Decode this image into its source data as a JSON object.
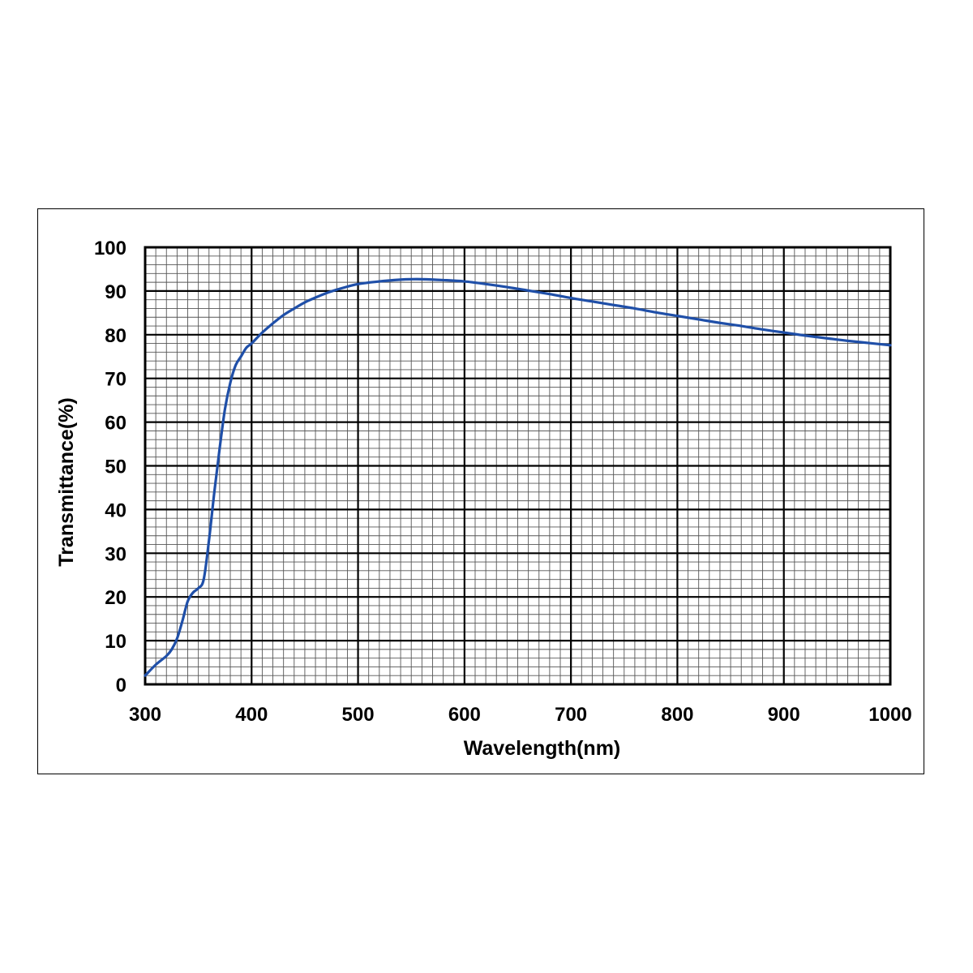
{
  "chart_data": {
    "type": "line",
    "title": "",
    "xlabel": "Wavelength(nm)",
    "ylabel": "Transmittance(%)",
    "xlim": [
      300,
      1000
    ],
    "ylim": [
      0,
      100
    ],
    "x_ticks": [
      "300",
      "400",
      "500",
      "600",
      "700",
      "800",
      "900",
      "1000"
    ],
    "y_ticks": [
      "0",
      "10",
      "20",
      "30",
      "40",
      "50",
      "60",
      "70",
      "80",
      "90",
      "100"
    ],
    "grid": true,
    "legend": "none",
    "line_color": "#1f4fa8",
    "series": [
      {
        "x": [
          300,
          310,
          320,
          325,
          330,
          335,
          340,
          345,
          350,
          355,
          360,
          365,
          370,
          375,
          380,
          385,
          390,
          395,
          400,
          410,
          420,
          430,
          440,
          450,
          460,
          470,
          480,
          490,
          500,
          520,
          540,
          550,
          560,
          580,
          600,
          620,
          640,
          660,
          680,
          700,
          720,
          740,
          760,
          780,
          800,
          820,
          840,
          860,
          880,
          900,
          920,
          940,
          960,
          980,
          1000
        ],
        "y": [
          2,
          4.5,
          6.5,
          8,
          10.5,
          14.5,
          19,
          21,
          22,
          24,
          33,
          44,
          54,
          63,
          69,
          73,
          75,
          77,
          78,
          80.5,
          82.6,
          84.5,
          86,
          87.4,
          88.5,
          89.5,
          90.3,
          91,
          91.6,
          92.2,
          92.6,
          92.7,
          92.7,
          92.5,
          92.2,
          91.6,
          90.9,
          90.1,
          89.3,
          88.4,
          87.6,
          86.8,
          86,
          85.1,
          84.3,
          83.5,
          82.7,
          82,
          81.2,
          80.5,
          79.8,
          79.2,
          78.6,
          78.1,
          77.6
        ]
      }
    ]
  }
}
